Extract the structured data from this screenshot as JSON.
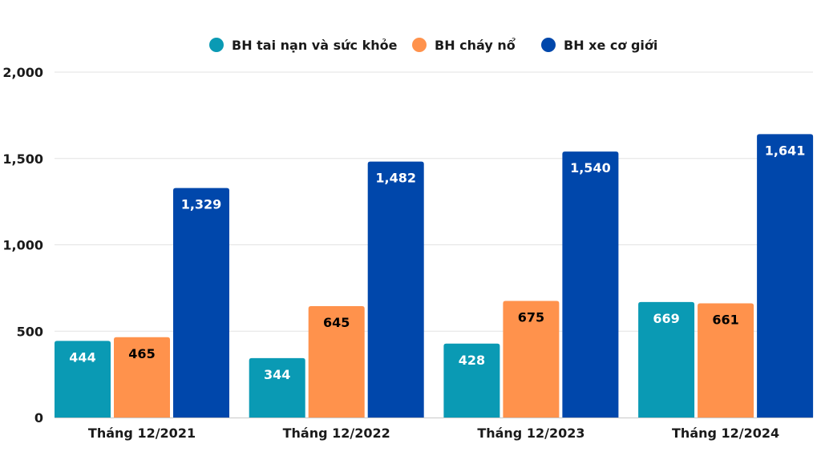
{
  "chart_data": {
    "type": "bar",
    "categories": [
      "Tháng 12/2021",
      "Tháng 12/2022",
      "Tháng 12/2023",
      "Tháng 12/2024"
    ],
    "series": [
      {
        "name": "BH tai nạn và sức khỏe",
        "color": "#0a9ab4",
        "label_color": "#ffffff",
        "values": [
          444,
          344,
          428,
          669
        ],
        "labels": [
          "444",
          "344",
          "428",
          "669"
        ]
      },
      {
        "name": "BH cháy nổ",
        "color": "#ff924c",
        "label_color": "#000000",
        "values": [
          465,
          645,
          675,
          661
        ],
        "labels": [
          "465",
          "645",
          "675",
          "661"
        ]
      },
      {
        "name": "BH xe cơ giới",
        "color": "#0047ab",
        "label_color": "#ffffff",
        "values": [
          1329,
          1482,
          1540,
          1641
        ],
        "labels": [
          "1,329",
          "1,482",
          "1,540",
          "1,641"
        ]
      }
    ],
    "y_ticks": [
      0,
      500,
      1000,
      1500,
      2000
    ],
    "y_tick_labels": [
      "0",
      "500",
      "1,000",
      "1,500",
      "2,000"
    ],
    "ylim": [
      0,
      2000
    ],
    "grid": true,
    "legend_position": "top-center",
    "title": "",
    "xlabel": "",
    "ylabel": ""
  }
}
